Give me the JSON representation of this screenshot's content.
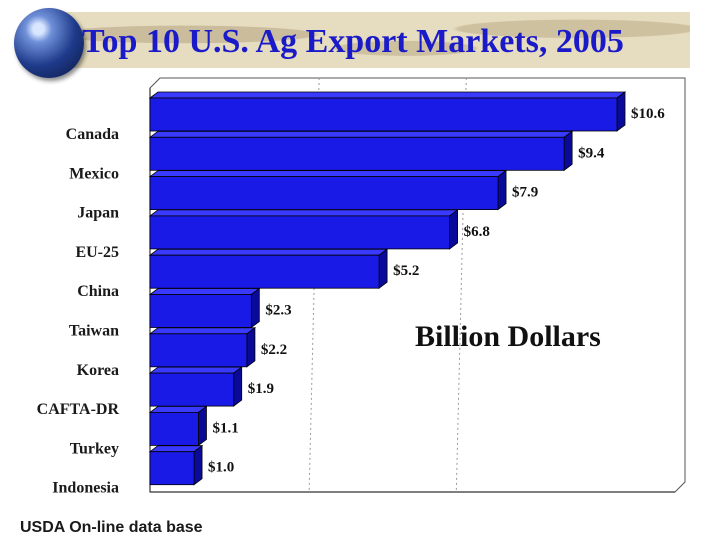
{
  "title": "Top 10 U.S. Ag Export Markets, 2005",
  "source": "USDA On-line data base",
  "units_label": "Billion Dollars",
  "colors": {
    "bar_front": "#1a1ae6",
    "bar_top": "#3a3aff",
    "bar_side": "#0a0a9a",
    "title": "#1a1ac8"
  },
  "chart_data": {
    "type": "bar",
    "orientation": "horizontal",
    "title": "Top 10 U.S. Ag Export Markets, 2005",
    "xlabel": "Billion Dollars",
    "ylabel": "",
    "categories": [
      "Canada",
      "Mexico",
      "Japan",
      "EU-25",
      "China",
      "Taiwan",
      "Korea",
      "CAFTA-DR",
      "Turkey",
      "Indonesia"
    ],
    "values": [
      10.6,
      9.4,
      7.9,
      6.8,
      5.2,
      2.3,
      2.2,
      1.9,
      1.1,
      1.0
    ],
    "value_labels": [
      "$10.6",
      "$9.4",
      "$7.9",
      "$6.8",
      "$5.2",
      "$2.3",
      "$2.2",
      "$1.9",
      "$1.1",
      "$1.0"
    ],
    "xlim": [
      0,
      10.6
    ],
    "grid": true
  }
}
